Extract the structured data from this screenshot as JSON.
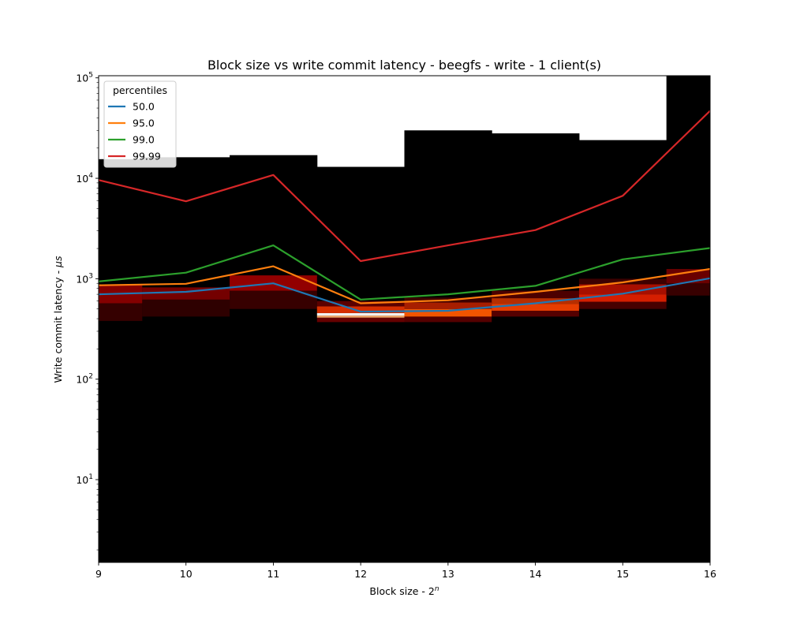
{
  "chart_data": {
    "type": "heatmap",
    "title": "Block size vs write commit latency - beegfs - write - 1 client(s)",
    "xlabel_text": "Block size - 2",
    "xlabel_sup": "n",
    "ylabel_text": "Write commit latency - ",
    "ylabel_sym": "μs",
    "yscale": "log",
    "xlim": [
      9,
      16
    ],
    "ylim": [
      1.5,
      105000
    ],
    "grid": false,
    "x": [
      9,
      10,
      11,
      12,
      13,
      14,
      15,
      16
    ],
    "x_tick_labels": [
      "9",
      "10",
      "11",
      "12",
      "13",
      "14",
      "15",
      "16"
    ],
    "y_ticks": [
      {
        "value": 10,
        "base": "10",
        "exp": "1"
      },
      {
        "value": 100,
        "base": "10",
        "exp": "2"
      },
      {
        "value": 1000,
        "base": "10",
        "exp": "3"
      },
      {
        "value": 10000,
        "base": "10",
        "exp": "4"
      },
      {
        "value": 100000,
        "base": "10",
        "exp": "5"
      }
    ],
    "legend": {
      "title": "percentiles",
      "placement": "upper left",
      "entries": [
        "50.0",
        "95.0",
        "99.0",
        "99.99"
      ]
    },
    "series": [
      {
        "name": "50.0",
        "color": "#1f77b4",
        "values": [
          700,
          740,
          900,
          470,
          480,
          570,
          710,
          1010
        ]
      },
      {
        "name": "95.0",
        "color": "#ff7f0e",
        "values": [
          860,
          890,
          1330,
          570,
          610,
          740,
          920,
          1250
        ]
      },
      {
        "name": "99.0",
        "color": "#2ca02c",
        "values": [
          940,
          1150,
          2150,
          620,
          700,
          850,
          1560,
          2020
        ]
      },
      {
        "name": "99.99",
        "color": "#d62728",
        "values": [
          9600,
          5900,
          10800,
          1500,
          2150,
          3050,
          6700,
          47000
        ]
      }
    ],
    "heatmap_columns": [
      {
        "x": 9,
        "x_span": [
          9,
          9.5
        ],
        "top": 15500,
        "bands": [
          {
            "lo": 380,
            "hi": 570,
            "c": "#380000"
          },
          {
            "lo": 570,
            "hi": 860,
            "c": "#8a0000"
          }
        ]
      },
      {
        "x": 10,
        "x_span": [
          9.5,
          10.5
        ],
        "top": 16200,
        "bands": [
          {
            "lo": 420,
            "hi": 620,
            "c": "#300000"
          },
          {
            "lo": 620,
            "hi": 820,
            "c": "#7a0000"
          }
        ]
      },
      {
        "x": 11,
        "x_span": [
          10.5,
          11.5
        ],
        "top": 17000,
        "bands": [
          {
            "lo": 500,
            "hi": 760,
            "c": "#3a0000"
          },
          {
            "lo": 760,
            "hi": 1080,
            "c": "#9a0000"
          }
        ]
      },
      {
        "x": 12,
        "x_span": [
          11.5,
          12.5
        ],
        "top": 13000,
        "bands": [
          {
            "lo": 370,
            "hi": 410,
            "c": "#6a0000"
          },
          {
            "lo": 410,
            "hi": 430,
            "c": "#ffb070"
          },
          {
            "lo": 430,
            "hi": 455,
            "c": "#ffffff"
          },
          {
            "lo": 455,
            "hi": 530,
            "c": "#e03000"
          },
          {
            "lo": 530,
            "hi": 600,
            "c": "#600000"
          }
        ]
      },
      {
        "x": 13,
        "x_span": [
          12.5,
          13.5
        ],
        "top": 30000,
        "bands": [
          {
            "lo": 370,
            "hi": 420,
            "c": "#5a0000"
          },
          {
            "lo": 420,
            "hi": 500,
            "c": "#ff5a00"
          },
          {
            "lo": 500,
            "hi": 580,
            "c": "#b02000"
          },
          {
            "lo": 580,
            "hi": 650,
            "c": "#400000"
          }
        ]
      },
      {
        "x": 14,
        "x_span": [
          13.5,
          14.5
        ],
        "top": 28000,
        "bands": [
          {
            "lo": 420,
            "hi": 480,
            "c": "#5a0000"
          },
          {
            "lo": 480,
            "hi": 560,
            "c": "#f24000"
          },
          {
            "lo": 560,
            "hi": 640,
            "c": "#c03000"
          },
          {
            "lo": 640,
            "hi": 760,
            "c": "#500000"
          }
        ]
      },
      {
        "x": 15,
        "x_span": [
          14.5,
          15.5
        ],
        "top": 24000,
        "bands": [
          {
            "lo": 500,
            "hi": 590,
            "c": "#4a0000"
          },
          {
            "lo": 590,
            "hi": 700,
            "c": "#e02000"
          },
          {
            "lo": 700,
            "hi": 880,
            "c": "#b01000"
          },
          {
            "lo": 880,
            "hi": 1000,
            "c": "#400000"
          }
        ]
      },
      {
        "x": 16,
        "x_span": [
          15.5,
          16
        ],
        "top": 105000,
        "bands": [
          {
            "lo": 680,
            "hi": 900,
            "c": "#3a0000"
          },
          {
            "lo": 900,
            "hi": 1250,
            "c": "#700000"
          }
        ]
      }
    ]
  }
}
